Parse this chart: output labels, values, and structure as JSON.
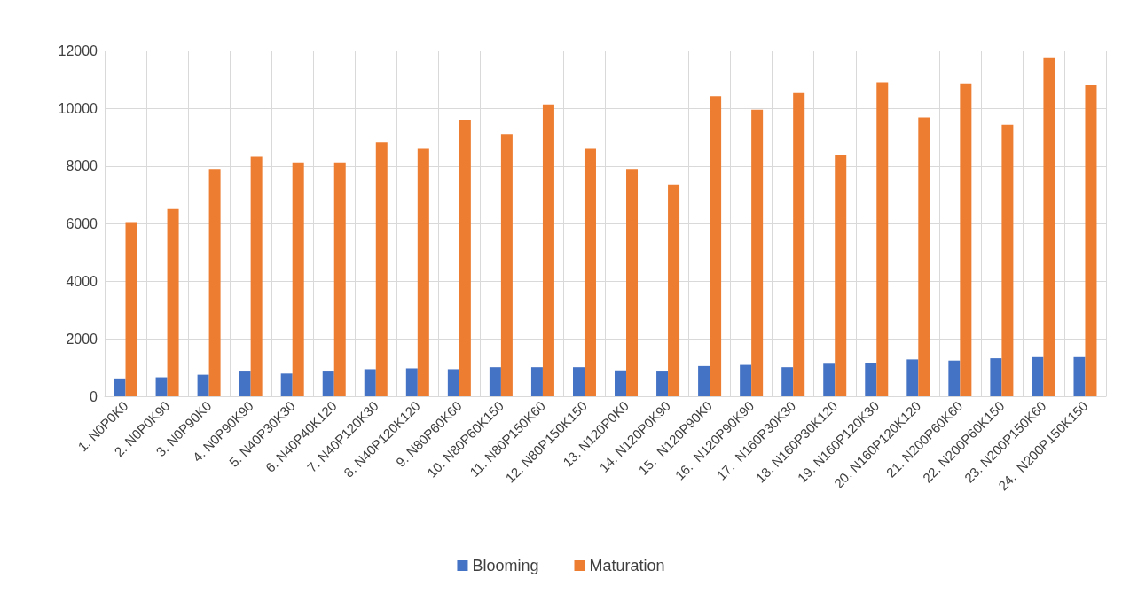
{
  "chart_data": {
    "type": "bar",
    "categories": [
      "1. N0P0K0",
      "2. N0P0K90",
      "3. N0P90K0",
      "4. N0P90K90",
      "5. N40P30K30",
      "6. N40P40K120",
      "7. N40P120K30",
      "8. N40P120K120",
      "9. N80P60K60",
      "10. N80P60K150",
      "11. N80P150K60",
      "12. N80P150K150",
      "13. N120P0K0",
      "14. N120P0K90",
      "15.  N120P90K0",
      "16.  N120P90K90",
      "17.  N160P30K30",
      "18. N160P30K120",
      "19. N160P120K30",
      "20. N160P120K120",
      "21. N200P60K60",
      "22. N200P60K150",
      "23. N200P150K60",
      "24.  N200P150K150"
    ],
    "series": [
      {
        "name": "Blooming",
        "color": "#4472c4",
        "values": [
          620,
          660,
          750,
          860,
          790,
          860,
          940,
          970,
          940,
          1010,
          1010,
          1010,
          900,
          860,
          1050,
          1090,
          1010,
          1130,
          1170,
          1280,
          1240,
          1320,
          1360,
          1360
        ]
      },
      {
        "name": "Maturation",
        "color": "#ed7d31",
        "values": [
          6050,
          6500,
          7870,
          8320,
          8100,
          8100,
          8820,
          8600,
          9600,
          9100,
          10130,
          8600,
          7870,
          7330,
          10420,
          9950,
          10530,
          8370,
          10880,
          9680,
          10840,
          9420,
          11760,
          10800
        ]
      }
    ],
    "ylim": [
      0,
      12000
    ],
    "yticks": [
      0,
      2000,
      4000,
      6000,
      8000,
      10000,
      12000
    ],
    "grid": true,
    "legend": "bottom"
  }
}
